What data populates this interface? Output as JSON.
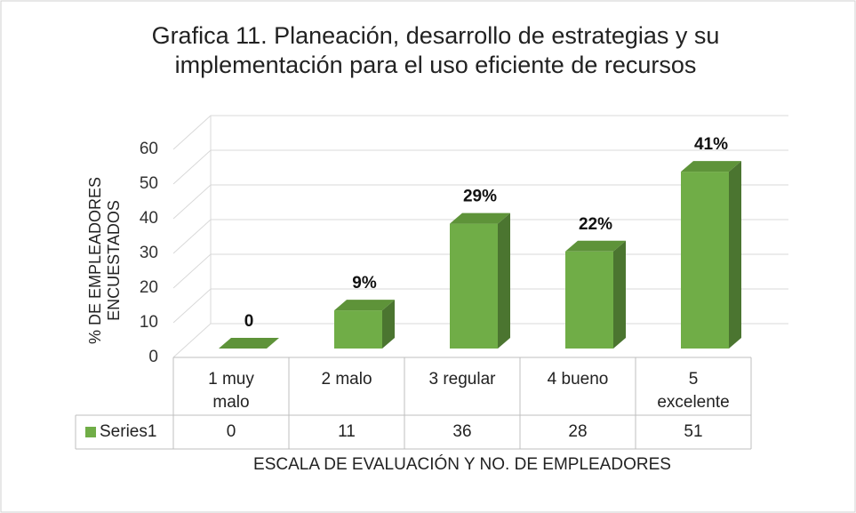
{
  "chart_data": {
    "type": "bar3d",
    "title": "Grafica 11. Planeación, desarrollo de estrategias y su implementación para el uso eficiente de recursos",
    "y_label": "% DE EMPLEADORES ENCUESTADOS",
    "x_label": "ESCALA DE EVALUACIÓN Y NO. DE EMPLEADORES",
    "categories": [
      "1 muy malo",
      "2 malo",
      "3 regular",
      "4 bueno",
      "5 excelente"
    ],
    "series": [
      {
        "name": "Series1",
        "color": "#70ad47",
        "values": [
          0,
          11,
          36,
          28,
          51
        ]
      }
    ],
    "data_labels": [
      "0",
      "9%",
      "29%",
      "22%",
      "41%"
    ],
    "ylim": [
      0,
      60
    ],
    "yticks": [
      0,
      10,
      20,
      30,
      40,
      50,
      60
    ],
    "grid": true,
    "data_table": true
  }
}
